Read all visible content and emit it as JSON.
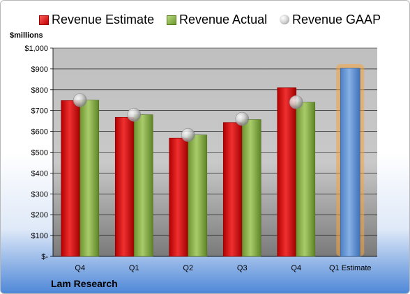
{
  "legend": {
    "estimate": "Revenue Estimate",
    "actual": "Revenue Actual",
    "gaap": "Revenue GAAP"
  },
  "company": "Lam Research",
  "chart_data": {
    "type": "bar",
    "ylabel": "$millions",
    "ylim": [
      0,
      1000
    ],
    "y_ticks": [
      {
        "value": 0,
        "label": "$-"
      },
      {
        "value": 100,
        "label": "$100"
      },
      {
        "value": 200,
        "label": "$200"
      },
      {
        "value": 300,
        "label": "$300"
      },
      {
        "value": 400,
        "label": "$400"
      },
      {
        "value": 500,
        "label": "$500"
      },
      {
        "value": 600,
        "label": "$600"
      },
      {
        "value": 700,
        "label": "$700"
      },
      {
        "value": 800,
        "label": "$800"
      },
      {
        "value": 900,
        "label": "$900"
      },
      {
        "value": 1000,
        "label": "$1,000"
      }
    ],
    "categories": [
      "Q4",
      "Q1",
      "Q2",
      "Q3",
      "Q4",
      "Q1 Estimate"
    ],
    "series": [
      {
        "name": "Revenue Estimate",
        "type": "bar",
        "color": "#d92020",
        "values": [
          748,
          668,
          568,
          643,
          810,
          null
        ]
      },
      {
        "name": "Revenue Actual",
        "type": "bar",
        "color": "#8db04f",
        "values": [
          750,
          680,
          583,
          657,
          740,
          null
        ]
      },
      {
        "name": "Revenue GAAP",
        "type": "marker",
        "color": "#c8c8c8",
        "values": [
          750,
          680,
          583,
          660,
          740,
          null
        ]
      }
    ],
    "forecast": {
      "category": "Q1 Estimate",
      "value": 903,
      "color": "#6b9bd8",
      "glow": "#f5a43c"
    },
    "grid": true,
    "legend_position": "top"
  }
}
